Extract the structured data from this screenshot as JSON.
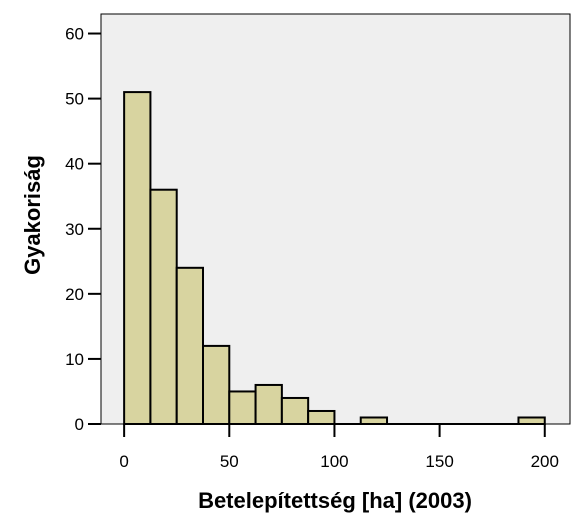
{
  "chart_data": {
    "type": "bar",
    "subtype": "histogram",
    "title": "",
    "xlabel": "Betelepítettség [ha] (2003)",
    "ylabel": "Gyakoriság",
    "bin_width": 12.5,
    "bins": [
      {
        "start": 0,
        "end": 12.5,
        "count": 51
      },
      {
        "start": 12.5,
        "end": 25,
        "count": 36
      },
      {
        "start": 25,
        "end": 37.5,
        "count": 24
      },
      {
        "start": 37.5,
        "end": 50,
        "count": 12
      },
      {
        "start": 50,
        "end": 62.5,
        "count": 5
      },
      {
        "start": 62.5,
        "end": 75,
        "count": 6
      },
      {
        "start": 75,
        "end": 87.5,
        "count": 4
      },
      {
        "start": 87.5,
        "end": 100,
        "count": 2
      },
      {
        "start": 100,
        "end": 112.5,
        "count": 0
      },
      {
        "start": 112.5,
        "end": 125,
        "count": 1
      },
      {
        "start": 125,
        "end": 137.5,
        "count": 0
      },
      {
        "start": 137.5,
        "end": 150,
        "count": 0
      },
      {
        "start": 150,
        "end": 162.5,
        "count": 0
      },
      {
        "start": 162.5,
        "end": 175,
        "count": 0
      },
      {
        "start": 175,
        "end": 187.5,
        "count": 0
      },
      {
        "start": 187.5,
        "end": 200,
        "count": 1
      }
    ],
    "xlim": [
      -11,
      212
    ],
    "ylim": [
      0,
      63
    ],
    "xticks": [
      0,
      50,
      100,
      150,
      200
    ],
    "yticks": [
      0,
      10,
      20,
      30,
      40,
      50,
      60
    ],
    "grid": false,
    "legend": "none",
    "colors": {
      "bar_fill": "#d8d4a0",
      "bar_stroke": "#000000",
      "plot_background": "#efefef",
      "axis": "#000000"
    }
  }
}
